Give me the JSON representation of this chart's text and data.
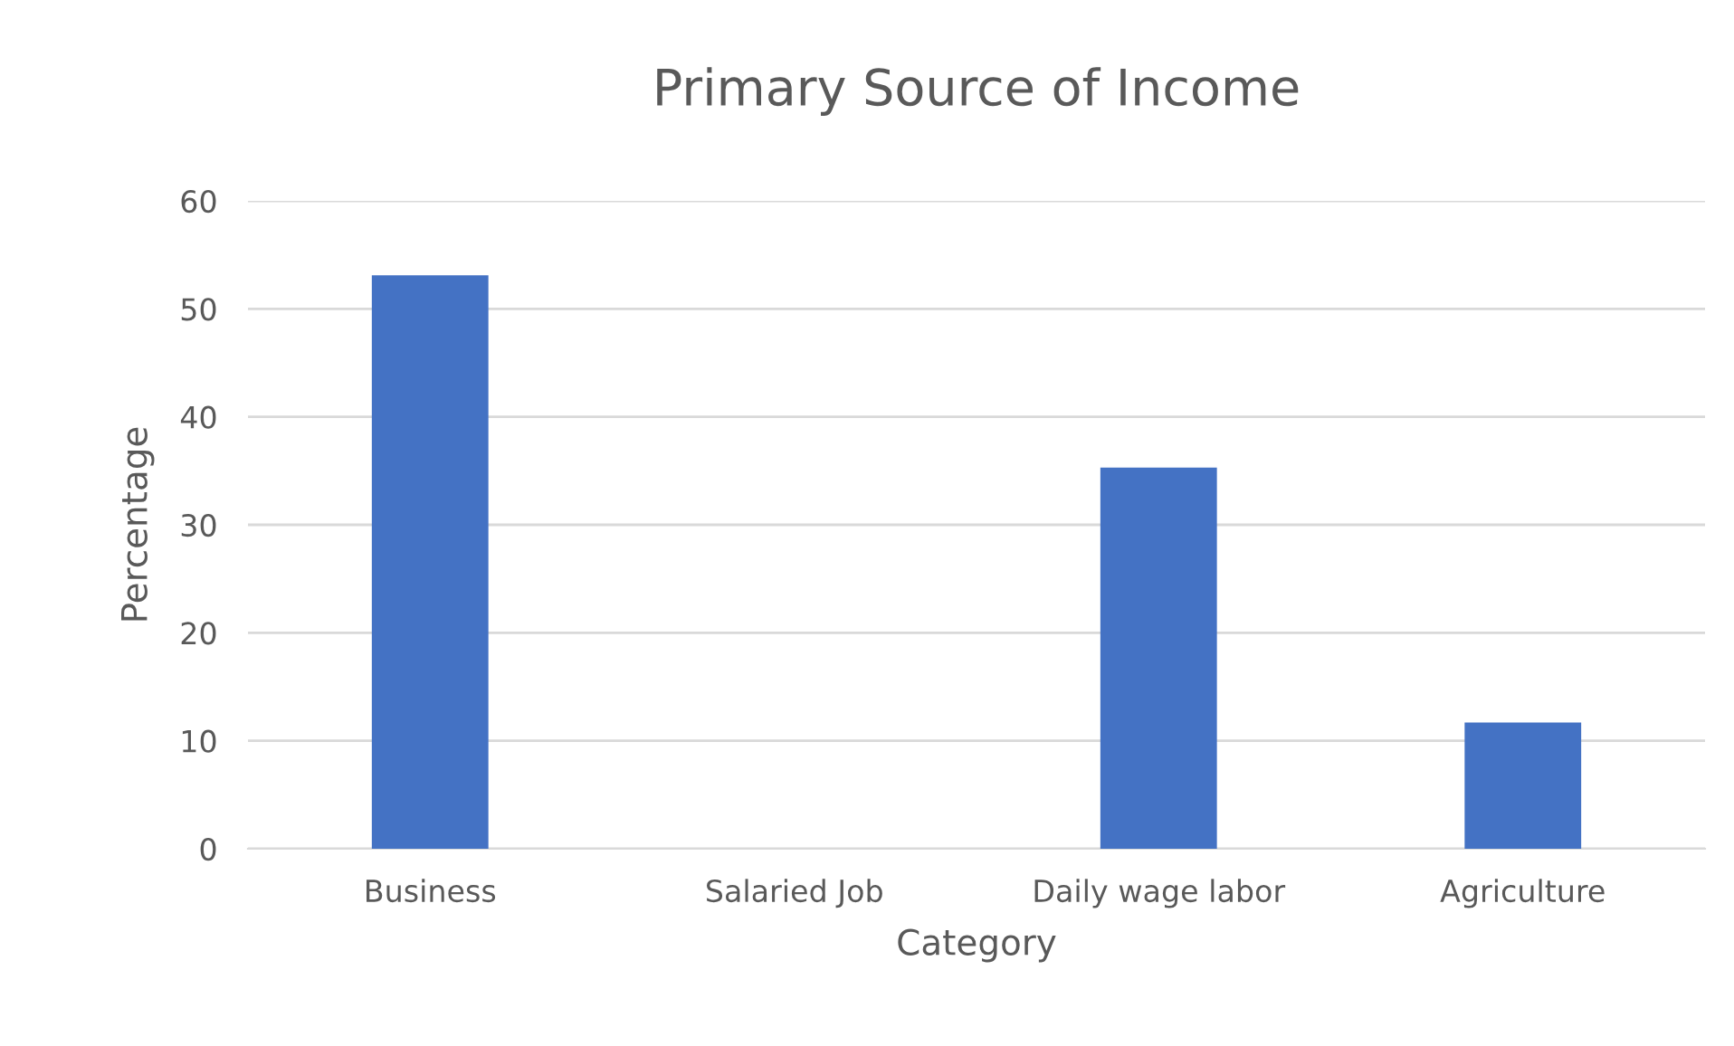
{
  "chart_data": {
    "type": "bar",
    "title": "Primary Source of Income",
    "xlabel": "Category",
    "ylabel": "Percentage",
    "categories": [
      "Business",
      "Salaried Job",
      "Daily wage labor",
      "Agriculture"
    ],
    "values": [
      53.1,
      0,
      35.3,
      11.7
    ],
    "color": "#4472c4",
    "ylim": [
      0,
      60
    ],
    "yticks": [
      0,
      10,
      20,
      30,
      40,
      50,
      60
    ],
    "grid": "y",
    "legend": false
  }
}
